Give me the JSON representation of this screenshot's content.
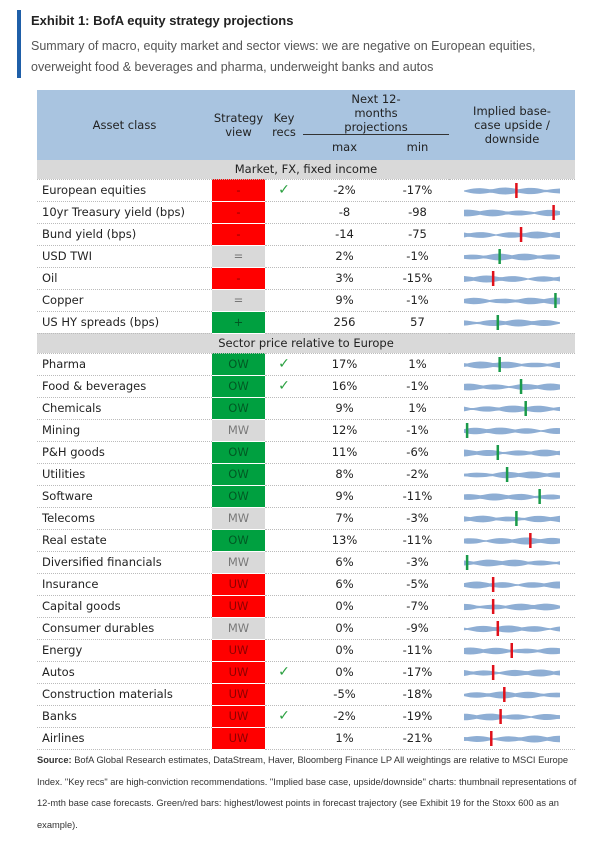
{
  "header": {
    "title": "Exhibit 1: BofA equity strategy projections",
    "subtitle": "Summary of macro, equity market and sector views: we are negative on European equities, overweight food & beverages and pharma, underweight banks and autos"
  },
  "table": {
    "columns": {
      "asset": "Asset class",
      "view": "Strategy view",
      "key": "Key recs",
      "projections": "Next 12-months projections",
      "max": "max",
      "min": "min",
      "thumb": "Implied base-case upside / downside"
    },
    "sections": [
      {
        "label": "Market, FX, fixed income",
        "rows": [
          {
            "asset": "European equities",
            "view": "-",
            "view_color": "#ff0000",
            "key": "✓",
            "max": "-2%",
            "min": "-17%",
            "marker_color": "#e0101a"
          },
          {
            "asset": "10yr Treasury yield (bps)",
            "view": "-",
            "view_color": "#ff0000",
            "key": "",
            "max": "-8",
            "min": "-98",
            "marker_color": "#e0101a"
          },
          {
            "asset": "Bund yield (bps)",
            "view": "-",
            "view_color": "#ff0000",
            "key": "",
            "max": "-14",
            "min": "-75",
            "marker_color": "#e0101a"
          },
          {
            "asset": "USD TWI",
            "view": "=",
            "view_color": "#d9d9d9",
            "key": "",
            "max": "2%",
            "min": "-1%",
            "marker_color": "#1a9a4a"
          },
          {
            "asset": "Oil",
            "view": "-",
            "view_color": "#ff0000",
            "key": "",
            "max": "3%",
            "min": "-15%",
            "marker_color": "#e0101a"
          },
          {
            "asset": "Copper",
            "view": "=",
            "view_color": "#d9d9d9",
            "key": "",
            "max": "9%",
            "min": "-1%",
            "marker_color": "#1a9a4a"
          },
          {
            "asset": "US HY spreads (bps)",
            "view": "+",
            "view_color": "#00a040",
            "key": "",
            "max": "256",
            "min": "57",
            "marker_color": "#1a9a4a"
          }
        ]
      },
      {
        "label": "Sector price relative to Europe",
        "rows": [
          {
            "asset": "Pharma",
            "view": "OW",
            "view_color": "#00a040",
            "key": "✓",
            "max": "17%",
            "min": "1%",
            "marker_color": "#1a9a4a"
          },
          {
            "asset": "Food & beverages",
            "view": "OW",
            "view_color": "#00a040",
            "key": "✓",
            "max": "16%",
            "min": "-1%",
            "marker_color": "#1a9a4a"
          },
          {
            "asset": "Chemicals",
            "view": "OW",
            "view_color": "#00a040",
            "key": "",
            "max": "9%",
            "min": "1%",
            "marker_color": "#1a9a4a"
          },
          {
            "asset": "Mining",
            "view": "MW",
            "view_color": "#d9d9d9",
            "key": "",
            "max": "12%",
            "min": "-1%",
            "marker_color": "#1a9a4a"
          },
          {
            "asset": "P&H goods",
            "view": "OW",
            "view_color": "#00a040",
            "key": "",
            "max": "11%",
            "min": "-6%",
            "marker_color": "#1a9a4a"
          },
          {
            "asset": "Utilities",
            "view": "OW",
            "view_color": "#00a040",
            "key": "",
            "max": "8%",
            "min": "-2%",
            "marker_color": "#1a9a4a"
          },
          {
            "asset": "Software",
            "view": "OW",
            "view_color": "#00a040",
            "key": "",
            "max": "9%",
            "min": "-11%",
            "marker_color": "#1a9a4a"
          },
          {
            "asset": "Telecoms",
            "view": "MW",
            "view_color": "#d9d9d9",
            "key": "",
            "max": "7%",
            "min": "-3%",
            "marker_color": "#1a9a4a"
          },
          {
            "asset": "Real estate",
            "view": "OW",
            "view_color": "#00a040",
            "key": "",
            "max": "13%",
            "min": "-11%",
            "marker_color": "#e0101a"
          },
          {
            "asset": "Diversified financials",
            "view": "MW",
            "view_color": "#d9d9d9",
            "key": "",
            "max": "6%",
            "min": "-3%",
            "marker_color": "#1a9a4a"
          },
          {
            "asset": "Insurance",
            "view": "UW",
            "view_color": "#ff0000",
            "key": "",
            "max": "6%",
            "min": "-5%",
            "marker_color": "#e0101a"
          },
          {
            "asset": "Capital goods",
            "view": "UW",
            "view_color": "#ff0000",
            "key": "",
            "max": "0%",
            "min": "-7%",
            "marker_color": "#e0101a"
          },
          {
            "asset": "Consumer durables",
            "view": "MW",
            "view_color": "#d9d9d9",
            "key": "",
            "max": "0%",
            "min": "-9%",
            "marker_color": "#e0101a"
          },
          {
            "asset": "Energy",
            "view": "UW",
            "view_color": "#ff0000",
            "key": "",
            "max": "0%",
            "min": "-11%",
            "marker_color": "#e0101a"
          },
          {
            "asset": "Autos",
            "view": "UW",
            "view_color": "#ff0000",
            "key": "✓",
            "max": "0%",
            "min": "-17%",
            "marker_color": "#e0101a"
          },
          {
            "asset": "Construction materials",
            "view": "UW",
            "view_color": "#ff0000",
            "key": "",
            "max": "-5%",
            "min": "-18%",
            "marker_color": "#e0101a"
          },
          {
            "asset": "Banks",
            "view": "UW",
            "view_color": "#ff0000",
            "key": "✓",
            "max": "-2%",
            "min": "-19%",
            "marker_color": "#e0101a"
          },
          {
            "asset": "Airlines",
            "view": "UW",
            "view_color": "#ff0000",
            "key": "",
            "max": "1%",
            "min": "-21%",
            "marker_color": "#e0101a"
          }
        ]
      }
    ]
  },
  "footer": {
    "source_label": "Source:",
    "source": "BofA Global Research estimates, DataStream, Haver, Bloomberg Finance LP All weightings are relative to MSCI Europe Index. \"Key recs\" are high-conviction recommendations. \"Implied base case, upside/downside\" charts: thumbnail representations of 12-mth base case forecasts. Green/red bars: highest/lowest points in forecast trajectory (see Exhibit 19 for the Stoxx 600 as an example)."
  }
}
